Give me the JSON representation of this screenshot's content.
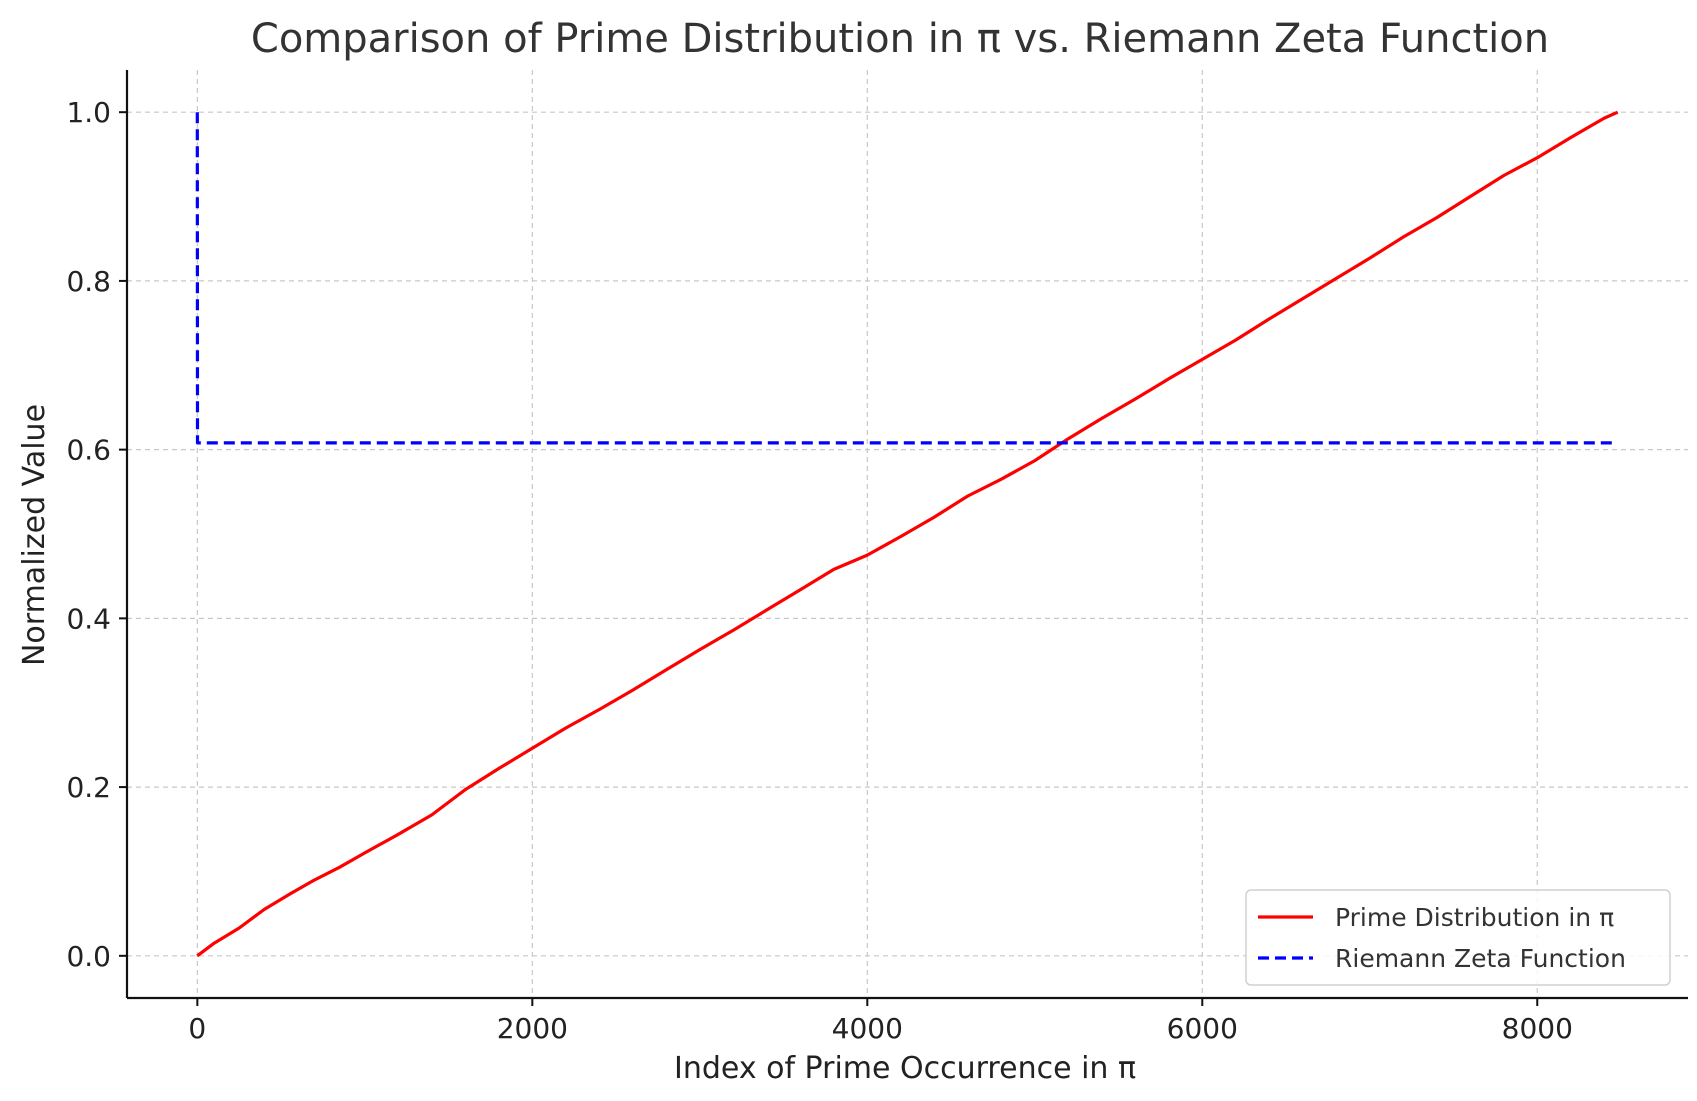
{
  "chart_data": {
    "type": "line",
    "title": "Comparison of Prime Distribution in π vs. Riemann Zeta Function",
    "xlabel": "Index of Prime Occurrence in π",
    "ylabel": "Normalized Value",
    "xlim": [
      -420,
      8900
    ],
    "ylim": [
      -0.05,
      1.05
    ],
    "xticks": [
      0,
      2000,
      4000,
      6000,
      8000
    ],
    "xtick_labels": [
      "0",
      "2000",
      "4000",
      "6000",
      "8000"
    ],
    "yticks": [
      0.0,
      0.2,
      0.4,
      0.6,
      0.8,
      1.0
    ],
    "ytick_labels": [
      "0.0",
      "0.2",
      "0.4",
      "0.6",
      "0.8",
      "1.0"
    ],
    "grid": true,
    "legend_position": "lower-right",
    "series": [
      {
        "name": "Prime Distribution in π",
        "color": "#ff0000",
        "style": "solid",
        "x": [
          0,
          100,
          250,
          400,
          550,
          700,
          850,
          1000,
          1200,
          1400,
          1600,
          1800,
          2000,
          2200,
          2400,
          2600,
          2800,
          3000,
          3200,
          3400,
          3600,
          3800,
          4000,
          4200,
          4400,
          4600,
          4800,
          5000,
          5200,
          5400,
          5600,
          5800,
          6000,
          6200,
          6400,
          6600,
          6800,
          7000,
          7200,
          7400,
          7600,
          7800,
          8000,
          8200,
          8400,
          8480
        ],
        "y": [
          0.0,
          0.015,
          0.033,
          0.055,
          0.073,
          0.09,
          0.105,
          0.122,
          0.144,
          0.167,
          0.197,
          0.222,
          0.246,
          0.27,
          0.292,
          0.315,
          0.339,
          0.363,
          0.386,
          0.41,
          0.434,
          0.458,
          0.475,
          0.497,
          0.52,
          0.545,
          0.565,
          0.587,
          0.613,
          0.637,
          0.66,
          0.684,
          0.707,
          0.73,
          0.755,
          0.779,
          0.803,
          0.827,
          0.852,
          0.875,
          0.9,
          0.925,
          0.946,
          0.97,
          0.993,
          1.0
        ]
      },
      {
        "name": "Riemann Zeta Function",
        "color": "#0000ff",
        "style": "dashed",
        "x": [
          0,
          1,
          8480
        ],
        "y": [
          1.0,
          0.608,
          0.608
        ]
      }
    ]
  }
}
